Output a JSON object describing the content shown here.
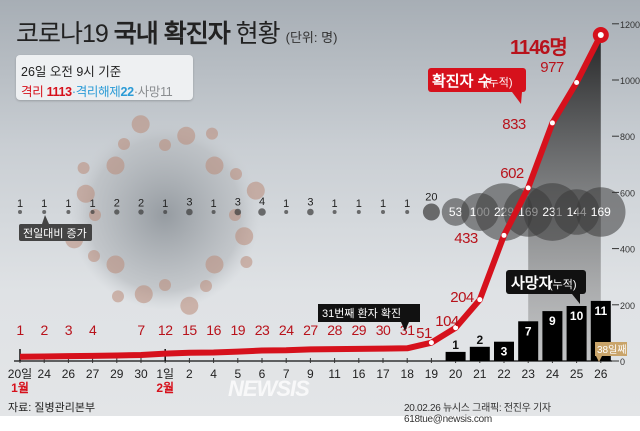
{
  "header": {
    "title_light": "코로나19",
    "title_bold": "국내 확진자",
    "title_tail": "현황",
    "unit": "(단위: 명)"
  },
  "infobox": {
    "basis": "26일 오전 9시 기준",
    "isolated_label": "격리",
    "isolated_value": "1113",
    "released_label": "·격리해제",
    "released_value": "22",
    "death_label": "·사망",
    "death_value": "11"
  },
  "colors": {
    "confirmed": "#d6111c",
    "released": "#2b9bd6",
    "death_bar": "#000000",
    "bubble": "#3a3a3a",
    "badge": "#c9a46a"
  },
  "chart_data": {
    "type": "line+bar+bubble",
    "x_dates": [
      "20일",
      "24",
      "26",
      "27",
      "29",
      "30",
      "1일",
      "2",
      "4",
      "5",
      "6",
      "7",
      "9",
      "11",
      "16",
      "17",
      "18",
      "19",
      "20",
      "21",
      "22",
      "23",
      "24",
      "25",
      "26"
    ],
    "month_labels": [
      {
        "index": 0,
        "text": "1월"
      },
      {
        "index": 6,
        "text": "2월"
      }
    ],
    "series": [
      {
        "name": "확진자 수(누적)",
        "kind": "line",
        "values": [
          1,
          2,
          3,
          4,
          null,
          7,
          12,
          15,
          16,
          19,
          23,
          24,
          27,
          28,
          29,
          30,
          31,
          51,
          104,
          204,
          433,
          602,
          833,
          977,
          1146
        ]
      },
      {
        "name": "사망자(누적)",
        "kind": "bar",
        "values": [
          null,
          null,
          null,
          null,
          null,
          null,
          null,
          null,
          null,
          null,
          null,
          null,
          null,
          null,
          null,
          null,
          null,
          null,
          1,
          2,
          3,
          7,
          9,
          10,
          11
        ]
      },
      {
        "name": "전일대비 증가",
        "kind": "bubble",
        "values": [
          1,
          1,
          1,
          1,
          2,
          2,
          1,
          3,
          1,
          3,
          4,
          1,
          3,
          1,
          1,
          1,
          1,
          20,
          53,
          100,
          229,
          169,
          231,
          144,
          169
        ]
      }
    ],
    "y_axis": {
      "ticks": [
        0,
        200,
        400,
        600,
        800,
        1000,
        1200
      ],
      "ylim": [
        0,
        1200
      ],
      "position": "right"
    },
    "annotations": {
      "last_value": "1146명",
      "confirmed_label": "확진자 수",
      "confirmed_sub": "(누적)",
      "death_label": "사망자",
      "death_sub": "(누적)",
      "increase_label": "전일대비 증가",
      "patient31": "31번째 환자 확진",
      "day_count": "38일째"
    }
  },
  "footer": {
    "source": "자료: 질병관리본부",
    "credit": "20.02.26 뉴시스 그래픽: 전진우 기자 618tue@newsis.com",
    "watermark": "NEWSIS"
  }
}
